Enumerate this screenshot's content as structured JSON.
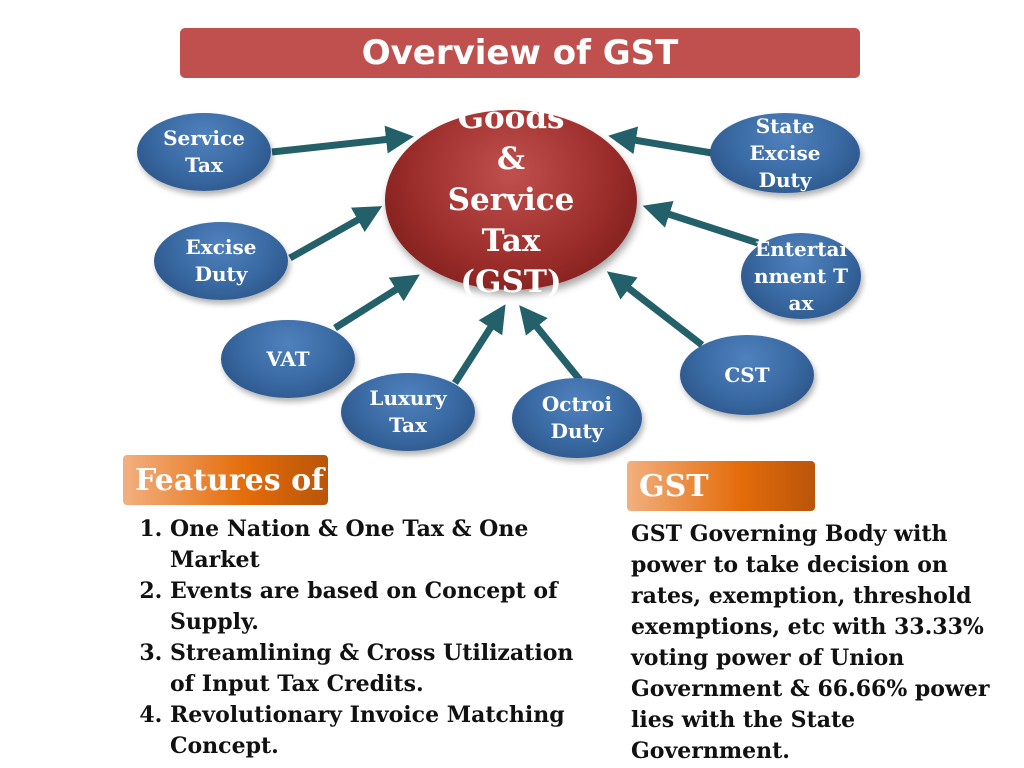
{
  "title": "Overview of GST",
  "center": {
    "label": "Goods & Service Tax (GST)"
  },
  "nodes": [
    {
      "label": "Service Tax"
    },
    {
      "label": "State Excise Duty"
    },
    {
      "label": "Excise Duty"
    },
    {
      "label": "Entertainment Tax"
    },
    {
      "label": "VAT"
    },
    {
      "label": "CST"
    },
    {
      "label": "Luxury Tax"
    },
    {
      "label": "Octroi Duty"
    }
  ],
  "features": {
    "heading": "Features of",
    "items": [
      "One Nation & One Tax & One Market",
      "Events are based on Concept of Supply.",
      "Streamlining & Cross Utilization of Input Tax Credits.",
      "Revolutionary Invoice Matching Concept."
    ]
  },
  "council": {
    "heading": "GST",
    "text": "GST Governing Body with power to take decision on rates, exemption, threshold exemptions, etc with 33.33% voting power of Union Government & 66.66% power lies with the State Government."
  }
}
